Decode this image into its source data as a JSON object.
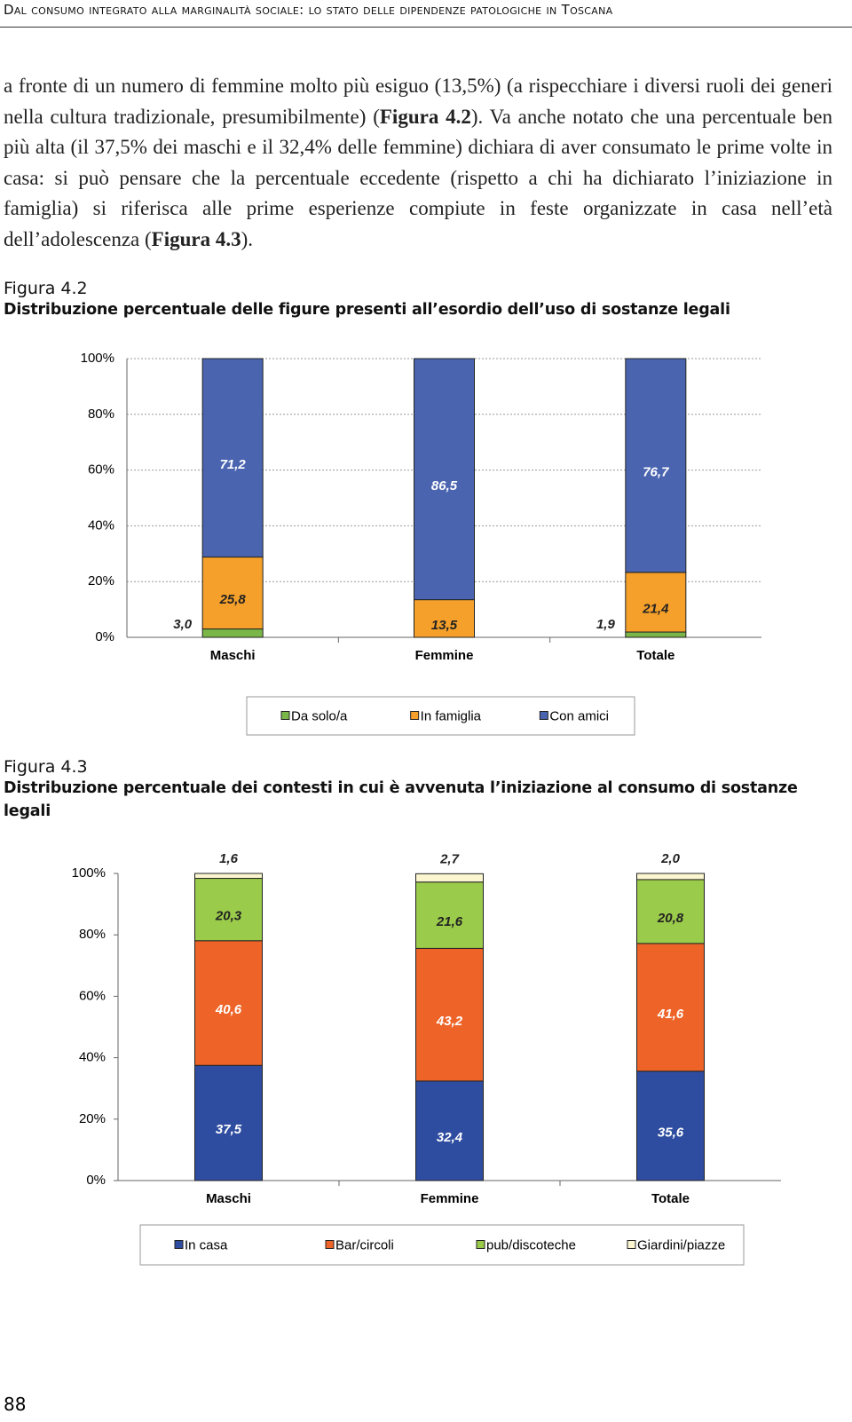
{
  "header": "Dal consumo integrato alla marginalità sociale: lo stato delle dipendenze patologiche in Toscana",
  "paragraph": [
    "a fronte di un numero di femmine molto più esiguo (13,5%) (a rispecchiare i diversi ruoli dei generi nella cultura tradizionale, presumibilmente) (",
    "Figura 4.2",
    "). Va anche notato che una percentuale ben più alta (il 37,5% dei maschi e il 32,4% delle femmine) dichiara di aver consumato le prime volte in casa: si può pensare che la percentuale eccedente (rispetto a chi ha dichiarato l’iniziazione in famiglia) si riferisca alle prime esperienze compiute in feste organizzate in casa nell’età dell’adolescenza (",
    "Figura 4.3",
    ")."
  ],
  "page_number": "88",
  "chart_data": [
    {
      "type": "stacked_bar",
      "label": "Figura 4.2",
      "title": "Distribuzione percentuale delle figure presenti all’esordio dell’uso di sostanze legali",
      "categories": [
        "Maschi",
        "Femmine",
        "Totale"
      ],
      "series": [
        {
          "name": "Da solo/a",
          "color": "#7ab648",
          "values": [
            3.0,
            null,
            1.9
          ],
          "value_labels": [
            "3,0",
            null,
            "1,9"
          ]
        },
        {
          "name": "In famiglia",
          "color": "#f5a02a",
          "values": [
            25.8,
            13.5,
            21.4
          ],
          "value_labels": [
            "25,8",
            "13,5",
            "21,4"
          ]
        },
        {
          "name": "Con amici",
          "color": "#4a64b0",
          "values": [
            71.2,
            86.5,
            76.7
          ],
          "value_labels": [
            "71,2",
            "86,5",
            "76,7"
          ]
        }
      ],
      "ylim": [
        0,
        100
      ],
      "yticks": [
        {
          "value": 0,
          "label": "0%"
        },
        {
          "value": 20,
          "label": "20%"
        },
        {
          "value": 40,
          "label": "40%"
        },
        {
          "value": 60,
          "label": "60%"
        },
        {
          "value": 80,
          "label": "80%"
        },
        {
          "value": 100,
          "label": "100%"
        }
      ],
      "grid": true
    },
    {
      "type": "stacked_bar",
      "label": "Figura 4.3",
      "title": "Distribuzione percentuale dei contesti in cui è avvenuta l’iniziazione al consumo di sostanze legali",
      "categories": [
        "Maschi",
        "Femmine",
        "Totale"
      ],
      "series": [
        {
          "name": "In casa",
          "color": "#2f4da0",
          "values": [
            37.5,
            32.4,
            35.6
          ],
          "value_labels": [
            "37,5",
            "32,4",
            "35,6"
          ]
        },
        {
          "name": "Bar/circoli",
          "color": "#ee6428",
          "values": [
            40.6,
            43.2,
            41.6
          ],
          "value_labels": [
            "40,6",
            "43,2",
            "41,6"
          ]
        },
        {
          "name": "pub/discoteche",
          "color": "#9bcb4a",
          "values": [
            20.3,
            21.6,
            20.8
          ],
          "value_labels": [
            "20,3",
            "21,6",
            "20,8"
          ]
        },
        {
          "name": "Giardini/piazze",
          "color": "#fbf6d0",
          "values": [
            1.6,
            2.7,
            2.0
          ],
          "value_labels": [
            "1,6",
            "2,7",
            "2,0"
          ]
        }
      ],
      "ylim": [
        0,
        100
      ],
      "yticks": [
        {
          "value": 0,
          "label": "0%"
        },
        {
          "value": 20,
          "label": "20%"
        },
        {
          "value": 40,
          "label": "40%"
        },
        {
          "value": 60,
          "label": "60%"
        },
        {
          "value": 80,
          "label": "80%"
        },
        {
          "value": 100,
          "label": "100%"
        }
      ],
      "grid": false
    }
  ]
}
